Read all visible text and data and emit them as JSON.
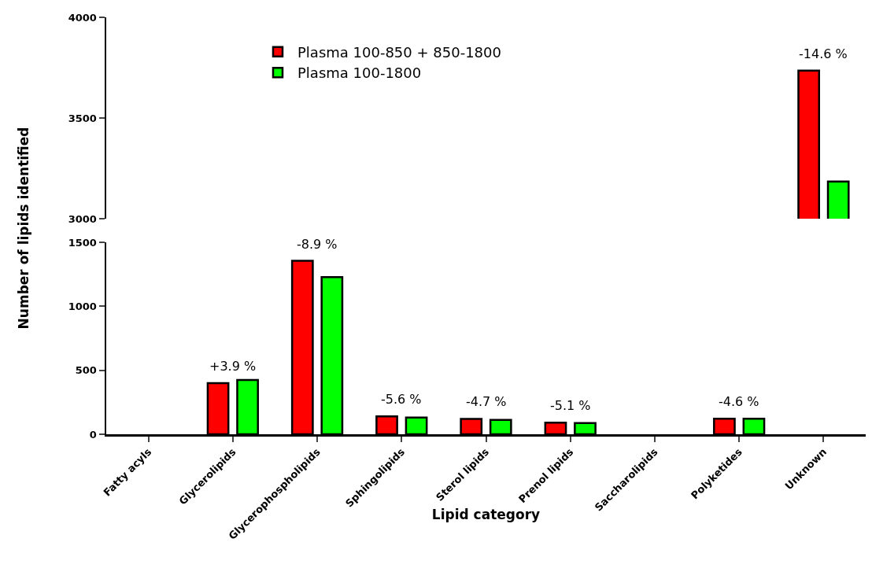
{
  "chart_data": [
    {
      "type": "bar",
      "categories": [
        "Fatty acyls",
        "Glycerolipids",
        "Glycerophospholipids",
        "Sphingolipids",
        "Sterol lipids",
        "Prenol lipids",
        "Saccharolipids",
        "Polyketides",
        "Unknown"
      ],
      "series": [
        {
          "name": "Plasma 100-850 + 850-1800",
          "color": "#ff0000",
          "values": [
            null,
            null,
            null,
            null,
            null,
            null,
            null,
            null,
            3735
          ]
        },
        {
          "name": "Plasma 100-1800",
          "color": "#00ff00",
          "values": [
            null,
            null,
            null,
            null,
            null,
            null,
            null,
            null,
            3185
          ]
        }
      ],
      "ylim": [
        3000,
        4000
      ],
      "yticks": [
        3000,
        3500,
        4000
      ],
      "tick_labels": "y",
      "grid": false,
      "legend": "top left",
      "annotations": [
        {
          "text": "-14.6 %",
          "x": "Unknown",
          "y": 3735
        }
      ]
    },
    {
      "type": "bar",
      "categories": [
        "Fatty acyls",
        "Glycerolipids",
        "Glycerophospholipids",
        "Sphingolipids",
        "Sterol lipids",
        "Prenol lipids",
        "Saccharolipids",
        "Polyketides",
        "Unknown"
      ],
      "series": [
        {
          "color": "#ff0000",
          "values": [
            null,
            400,
            1355,
            140,
            120,
            90,
            null,
            122,
            null
          ]
        },
        {
          "color": "#00ff00",
          "values": [
            null,
            424,
            1228,
            130,
            112,
            88,
            null,
            122,
            null
          ]
        }
      ],
      "ylim": [
        0,
        1500
      ],
      "yticks": [
        0,
        500,
        1000,
        1500
      ],
      "grid": false,
      "legend": false,
      "xlabel": "Lipid category",
      "ylabel": "Number of lipids identified",
      "annotations": [
        {
          "text": "+3.9 %",
          "x": "Glycerolipids",
          "y": 400
        },
        {
          "text": "-8.9 %",
          "x": "Glycerophospholipids",
          "y": 1355
        },
        {
          "text": "-5.6 %",
          "x": "Sphingolipids",
          "y": 140
        },
        {
          "text": "-4.7 %",
          "x": "Sterol lipids",
          "y": 120
        },
        {
          "text": "-5.1 %",
          "x": "Prenol lipids",
          "y": 90
        },
        {
          "text": "-4.6 %",
          "x": "Polyketides",
          "y": 122
        }
      ]
    }
  ]
}
